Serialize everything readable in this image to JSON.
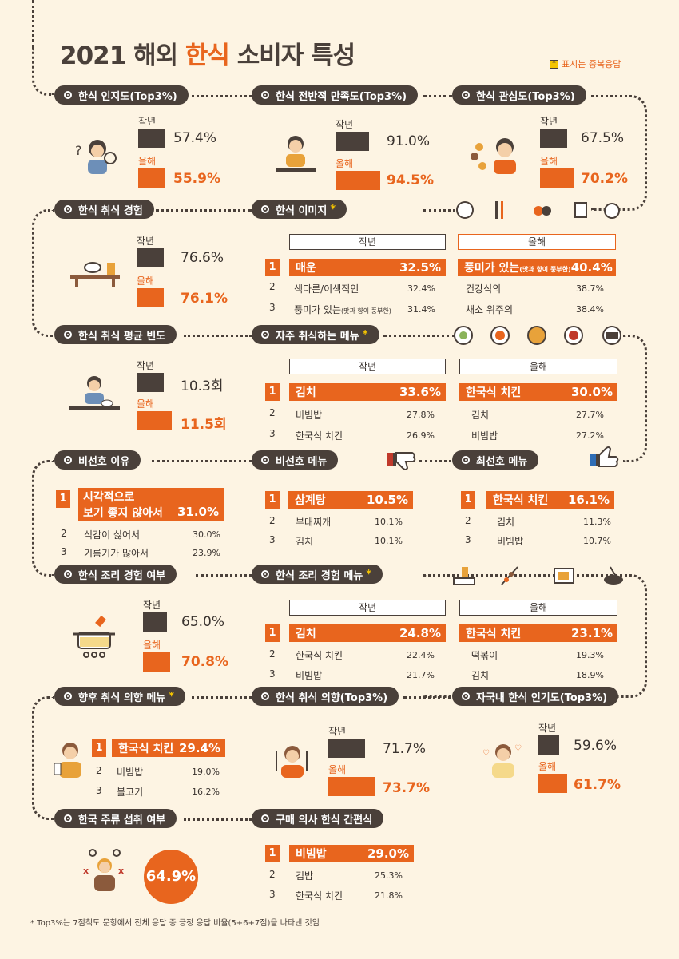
{
  "title_pre": "2021 해외 ",
  "title_hl": "한식",
  "title_post": " 소비자 특성",
  "legend_mark": "*",
  "legend": "표시는 중복응답",
  "prev": "작년",
  "curr": "올해",
  "colors": {
    "dark": "#4a403a",
    "accent": "#e8651e",
    "bg": "#fdf4e3",
    "star": "#f5c400"
  },
  "awareness": {
    "title": "한식 인지도(Top3%)",
    "prev": "57.4%",
    "curr": "55.9%",
    "prev_n": 57.4,
    "curr_n": 55.9
  },
  "satisfaction": {
    "title": "한식 전반적 만족도(Top3%)",
    "prev": "91.0%",
    "curr": "94.5%",
    "prev_n": 91.0,
    "curr_n": 94.5
  },
  "interest": {
    "title": "한식 관심도(Top3%)",
    "prev": "67.5%",
    "curr": "70.2%",
    "prev_n": 67.5,
    "curr_n": 70.2
  },
  "experience": {
    "title": "한식 취식 경험",
    "prev": "76.6%",
    "curr": "76.1%",
    "prev_n": 76.6,
    "curr_n": 76.1
  },
  "image": {
    "title": "한식 이미지",
    "star": "*",
    "prev": [
      {
        "r": "1",
        "n": "매운",
        "v": "32.5%"
      },
      {
        "r": "2",
        "n": "색다른/이색적인",
        "v": "32.4%"
      },
      {
        "r": "3",
        "n": "풍미가 있는",
        "note": "(맛과 향이 풍부한)",
        "v": "31.4%"
      }
    ],
    "curr": [
      {
        "n": "풍미가 있는",
        "note": "(맛과 향이 풍부한)",
        "v": "40.4%"
      },
      {
        "n": "건강식의",
        "v": "38.7%"
      },
      {
        "n": "채소 위주의",
        "v": "38.4%"
      }
    ]
  },
  "frequency": {
    "title": "한식 취식 평균 빈도",
    "prev": "10.3회",
    "curr": "11.5회",
    "prev_n": 10.3,
    "curr_n": 11.5
  },
  "frequent_menu": {
    "title": "자주 취식하는 메뉴",
    "star": "*",
    "prev": [
      {
        "r": "1",
        "n": "김치",
        "v": "33.6%"
      },
      {
        "r": "2",
        "n": "비빔밥",
        "v": "27.8%"
      },
      {
        "r": "3",
        "n": "한국식 치킨",
        "v": "26.9%"
      }
    ],
    "curr": [
      {
        "n": "한국식 치킨",
        "v": "30.0%"
      },
      {
        "n": "김치",
        "v": "27.7%"
      },
      {
        "n": "비빔밥",
        "v": "27.2%"
      }
    ]
  },
  "dislike_reason": {
    "title": "비선호 이유",
    "items": [
      {
        "r": "1",
        "n1": "시각적으로",
        "n2": "보기 좋지 않아서",
        "v": "31.0%"
      },
      {
        "r": "2",
        "n": "식감이 싫어서",
        "v": "30.0%"
      },
      {
        "r": "3",
        "n": "기름기가 많아서",
        "v": "23.9%"
      }
    ]
  },
  "dislike_menu": {
    "title": "비선호 메뉴",
    "items": [
      {
        "r": "1",
        "n": "삼계탕",
        "v": "10.5%"
      },
      {
        "r": "2",
        "n": "부대찌개",
        "v": "10.1%"
      },
      {
        "r": "3",
        "n": "김치",
        "v": "10.1%"
      }
    ]
  },
  "best_menu": {
    "title": "최선호 메뉴",
    "items": [
      {
        "r": "1",
        "n": "한국식 치킨",
        "v": "16.1%"
      },
      {
        "r": "2",
        "n": "김치",
        "v": "11.3%"
      },
      {
        "r": "3",
        "n": "비빔밥",
        "v": "10.7%"
      }
    ]
  },
  "cook_exp": {
    "title": "한식 조리 경험 여부",
    "prev": "65.0%",
    "curr": "70.8%",
    "prev_n": 65.0,
    "curr_n": 70.8
  },
  "cook_menu": {
    "title": "한식 조리 경험 메뉴",
    "star": "*",
    "prev": [
      {
        "r": "1",
        "n": "김치",
        "v": "24.8%"
      },
      {
        "r": "2",
        "n": "한국식 치킨",
        "v": "22.4%"
      },
      {
        "r": "3",
        "n": "비빔밥",
        "v": "21.7%"
      }
    ],
    "curr": [
      {
        "n": "한국식 치킨",
        "v": "23.1%"
      },
      {
        "n": "떡볶이",
        "v": "19.3%"
      },
      {
        "n": "김치",
        "v": "18.9%"
      }
    ]
  },
  "future_menu": {
    "title": "향후 취식 의향 메뉴",
    "star": "*",
    "items": [
      {
        "r": "1",
        "n": "한국식 치킨",
        "v": "29.4%"
      },
      {
        "r": "2",
        "n": "비빔밥",
        "v": "19.0%"
      },
      {
        "r": "3",
        "n": "불고기",
        "v": "16.2%"
      }
    ]
  },
  "intent": {
    "title": "한식 취식 의향(Top3%)",
    "prev": "71.7%",
    "curr": "73.7%",
    "prev_n": 71.7,
    "curr_n": 73.7
  },
  "popularity": {
    "title": "자국내 한식 인기도(Top3%)",
    "prev": "59.6%",
    "curr": "61.7%",
    "prev_n": 59.6,
    "curr_n": 61.7
  },
  "liquor": {
    "title": "한국 주류 섭취 여부",
    "value": "64.9%"
  },
  "hmr": {
    "title": "구매 의사 한식 간편식",
    "items": [
      {
        "r": "1",
        "n": "비빔밥",
        "v": "29.0%"
      },
      {
        "r": "2",
        "n": "김밥",
        "v": "25.3%"
      },
      {
        "r": "3",
        "n": "한국식 치킨",
        "v": "21.8%"
      }
    ]
  },
  "footnote": "* Top3%는 7점척도 문항에서 전체 응답 중 긍정 응답 비율(5+6+7점)을 나타낸 것임"
}
